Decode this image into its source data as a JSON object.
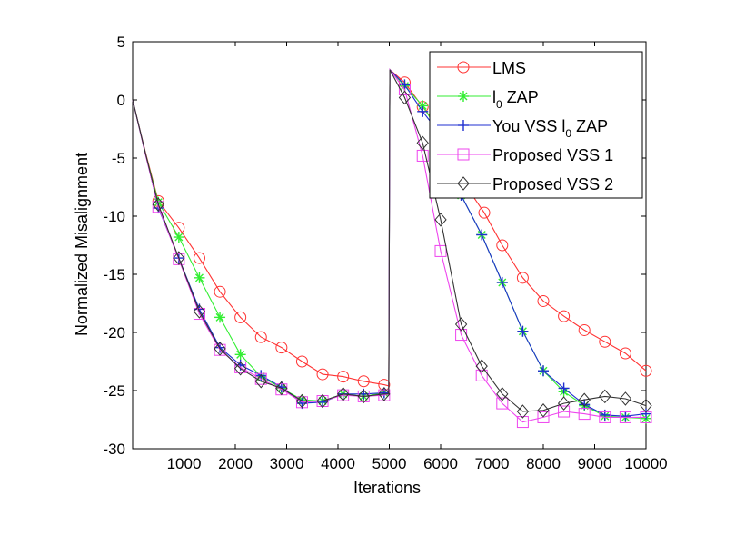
{
  "chart_data": {
    "type": "line",
    "title": "",
    "xlabel": "Iterations",
    "ylabel": "Normalized Misalignment",
    "xlim": [
      0,
      10000
    ],
    "ylim": [
      -30,
      5
    ],
    "xticks": [
      1000,
      2000,
      3000,
      4000,
      5000,
      6000,
      7000,
      8000,
      9000,
      10000
    ],
    "yticks": [
      5,
      0,
      -5,
      -10,
      -15,
      -20,
      -25,
      -30
    ],
    "grid": false,
    "legend_position": "top-right",
    "series": [
      {
        "name": "LMS",
        "legend_label": {
          "main": "LMS"
        },
        "color": "#ff3333",
        "marker": "circle",
        "values": [
          [
            0,
            0
          ],
          [
            250,
            -4.5
          ],
          [
            500,
            -8.7
          ],
          [
            900,
            -11
          ],
          [
            1300,
            -13.6
          ],
          [
            1700,
            -16.5
          ],
          [
            2100,
            -18.7
          ],
          [
            2500,
            -20.4
          ],
          [
            2900,
            -21.3
          ],
          [
            3300,
            -22.5
          ],
          [
            3700,
            -23.6
          ],
          [
            4100,
            -23.8
          ],
          [
            4500,
            -24.2
          ],
          [
            4900,
            -24.5
          ],
          [
            4990,
            -24.6
          ],
          [
            5010,
            2.6
          ],
          [
            5300,
            1.5
          ],
          [
            5650,
            -0.6
          ],
          [
            6000,
            -2.6
          ],
          [
            6400,
            -6.8
          ],
          [
            6850,
            -9.7
          ],
          [
            7200,
            -12.5
          ],
          [
            7600,
            -15.3
          ],
          [
            8000,
            -17.3
          ],
          [
            8400,
            -18.6
          ],
          [
            8800,
            -19.8
          ],
          [
            9200,
            -20.8
          ],
          [
            9600,
            -21.8
          ],
          [
            10000,
            -23.3
          ]
        ]
      },
      {
        "name": "l0 ZAP",
        "legend_label": {
          "main": "l",
          "sub": "0",
          "after": " ZAP"
        },
        "color": "#33ee33",
        "marker": "star",
        "values": [
          [
            0,
            0
          ],
          [
            250,
            -4.6
          ],
          [
            500,
            -8.8
          ],
          [
            900,
            -11.8
          ],
          [
            1300,
            -15.3
          ],
          [
            1700,
            -18.7
          ],
          [
            2100,
            -21.9
          ],
          [
            2500,
            -23.8
          ],
          [
            2900,
            -24.8
          ],
          [
            3300,
            -25.8
          ],
          [
            3700,
            -25.9
          ],
          [
            4100,
            -25.3
          ],
          [
            4500,
            -25.5
          ],
          [
            4900,
            -25.2
          ],
          [
            4990,
            -25.3
          ],
          [
            5010,
            2.6
          ],
          [
            5300,
            1.2
          ],
          [
            5650,
            -0.5
          ],
          [
            6000,
            -3
          ],
          [
            6400,
            -8.2
          ],
          [
            6800,
            -11.6
          ],
          [
            7200,
            -15.7
          ],
          [
            7600,
            -19.9
          ],
          [
            8000,
            -23.3
          ],
          [
            8400,
            -25.1
          ],
          [
            8800,
            -26.3
          ],
          [
            9200,
            -27.2
          ],
          [
            9600,
            -27.3
          ],
          [
            10000,
            -27.4
          ]
        ]
      },
      {
        "name": "You VSS l0 ZAP",
        "legend_label": {
          "main": "You VSS l",
          "sub": "0",
          "after": " ZAP"
        },
        "color": "#1f2fd0",
        "marker": "plus",
        "values": [
          [
            0,
            0
          ],
          [
            250,
            -4.6
          ],
          [
            500,
            -9.3
          ],
          [
            900,
            -13.6
          ],
          [
            1300,
            -18
          ],
          [
            1700,
            -21.3
          ],
          [
            2100,
            -22.8
          ],
          [
            2500,
            -23.7
          ],
          [
            2900,
            -24.7
          ],
          [
            3300,
            -26.1
          ],
          [
            3700,
            -26
          ],
          [
            4100,
            -25.3
          ],
          [
            4500,
            -25.3
          ],
          [
            4900,
            -25.2
          ],
          [
            4990,
            -25.3
          ],
          [
            5010,
            2.6
          ],
          [
            5300,
            1.3
          ],
          [
            5650,
            -1
          ],
          [
            6000,
            -3
          ],
          [
            6400,
            -8.2
          ],
          [
            6800,
            -11.6
          ],
          [
            7200,
            -15.7
          ],
          [
            7600,
            -19.9
          ],
          [
            8000,
            -23.3
          ],
          [
            8400,
            -24.8
          ],
          [
            8800,
            -26.2
          ],
          [
            9200,
            -27.1
          ],
          [
            9600,
            -27.2
          ],
          [
            10000,
            -27
          ]
        ]
      },
      {
        "name": "Proposed VSS 1",
        "legend_label": {
          "main": "Proposed VSS 1"
        },
        "color": "#ee44ee",
        "marker": "square",
        "values": [
          [
            0,
            0
          ],
          [
            250,
            -4.7
          ],
          [
            500,
            -9.2
          ],
          [
            900,
            -13.7
          ],
          [
            1300,
            -18.4
          ],
          [
            1700,
            -21.5
          ],
          [
            2100,
            -23
          ],
          [
            2500,
            -24
          ],
          [
            2900,
            -24.9
          ],
          [
            3300,
            -26
          ],
          [
            3700,
            -25.9
          ],
          [
            4100,
            -25.4
          ],
          [
            4500,
            -25.5
          ],
          [
            4900,
            -25.4
          ],
          [
            4990,
            -25.3
          ],
          [
            5010,
            2.6
          ],
          [
            5300,
            0.9
          ],
          [
            5650,
            -4.8
          ],
          [
            6000,
            -13
          ],
          [
            6400,
            -20.2
          ],
          [
            6800,
            -23.7
          ],
          [
            7200,
            -26.1
          ],
          [
            7600,
            -27.7
          ],
          [
            8000,
            -27.3
          ],
          [
            8400,
            -26.8
          ],
          [
            8800,
            -27
          ],
          [
            9200,
            -27.3
          ],
          [
            9600,
            -27.3
          ],
          [
            10000,
            -27.3
          ]
        ]
      },
      {
        "name": "Proposed VSS 2",
        "legend_label": {
          "main": "Proposed VSS 2"
        },
        "color": "#333333",
        "marker": "diamond",
        "values": [
          [
            0,
            0
          ],
          [
            250,
            -4.6
          ],
          [
            500,
            -9
          ],
          [
            900,
            -13.6
          ],
          [
            1300,
            -18.2
          ],
          [
            1700,
            -21.4
          ],
          [
            2100,
            -23.1
          ],
          [
            2500,
            -24.2
          ],
          [
            2900,
            -24.8
          ],
          [
            3300,
            -25.9
          ],
          [
            3700,
            -25.9
          ],
          [
            4100,
            -25.3
          ],
          [
            4500,
            -25.5
          ],
          [
            4900,
            -25.3
          ],
          [
            4990,
            -25.3
          ],
          [
            5010,
            2.6
          ],
          [
            5300,
            0.2
          ],
          [
            5650,
            -3.7
          ],
          [
            6000,
            -10.3
          ],
          [
            6400,
            -19.3
          ],
          [
            6800,
            -22.9
          ],
          [
            7200,
            -25.3
          ],
          [
            7600,
            -26.8
          ],
          [
            8000,
            -26.7
          ],
          [
            8400,
            -26.1
          ],
          [
            8800,
            -25.8
          ],
          [
            9200,
            -25.5
          ],
          [
            9600,
            -25.7
          ],
          [
            10000,
            -26.3
          ]
        ]
      }
    ]
  }
}
